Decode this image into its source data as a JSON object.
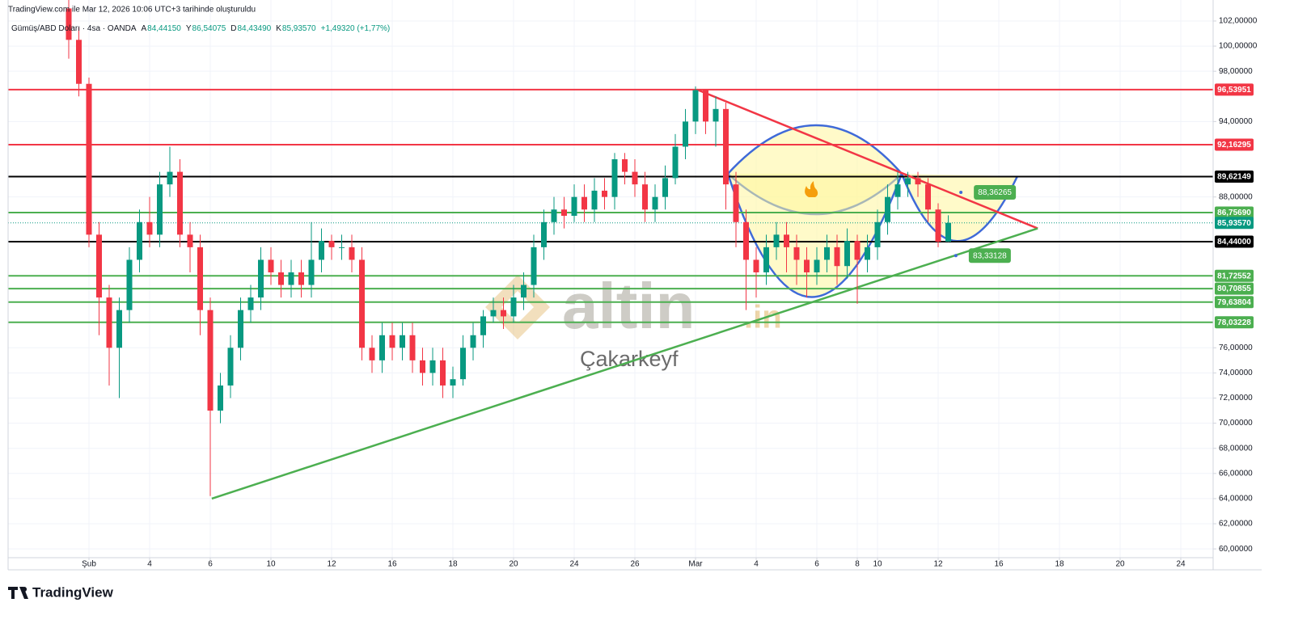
{
  "page": {
    "created_note": "TradingView.com ile Mar 12, 2026 10:06 UTC+3 tarihinde oluşturuldu",
    "brand": "TradingView"
  },
  "watermark": {
    "logo": "altin",
    "suffix": ".in",
    "author": "Çakarkeyf"
  },
  "chart_data": {
    "type": "candlestick",
    "title": "Gümüş/ABD Doları · 4sa · OANDA",
    "ohlc_text": [
      "A",
      "84,44150",
      "Y",
      "86,54075",
      "D",
      "84,43490",
      "K",
      "85,93570",
      "+1,49320 (+1,77%)"
    ],
    "up_color": "#089981",
    "down_color": "#f23645",
    "grid": true,
    "xlim": [
      0,
      238.4
    ],
    "ylim": [
      59.3,
      103.67
    ],
    "xticks": [
      {
        "value": 16,
        "label": "Şub"
      },
      {
        "value": 28,
        "label": "4"
      },
      {
        "value": 40,
        "label": "6"
      },
      {
        "value": 52,
        "label": "10"
      },
      {
        "value": 64,
        "label": "12"
      },
      {
        "value": 76,
        "label": "16"
      },
      {
        "value": 88,
        "label": "18"
      },
      {
        "value": 100,
        "label": "20"
      },
      {
        "value": 112,
        "label": "24"
      },
      {
        "value": 124,
        "label": "26"
      },
      {
        "value": 136,
        "label": "Mar"
      },
      {
        "value": 148,
        "label": "4"
      },
      {
        "value": 160,
        "label": "6"
      },
      {
        "value": 168,
        "label": "8"
      },
      {
        "value": 172,
        "label": "10"
      },
      {
        "value": 184,
        "label": "12"
      },
      {
        "value": 196,
        "label": "16"
      },
      {
        "value": 208,
        "label": "18"
      },
      {
        "value": 220,
        "label": "20"
      },
      {
        "value": 232,
        "label": "24"
      }
    ],
    "yticks": [
      {
        "value": 102,
        "label": "102,00000"
      },
      {
        "value": 100,
        "label": "100,00000"
      },
      {
        "value": 98,
        "label": "98,00000"
      },
      {
        "value": 94,
        "label": "94,00000"
      },
      {
        "value": 88,
        "label": "88,00000"
      },
      {
        "value": 76,
        "label": "76,00000"
      },
      {
        "value": 74,
        "label": "74,00000"
      },
      {
        "value": 72,
        "label": "72,00000"
      },
      {
        "value": 70,
        "label": "70,00000"
      },
      {
        "value": 68,
        "label": "68,00000"
      },
      {
        "value": 66,
        "label": "66,00000"
      },
      {
        "value": 64,
        "label": "64,00000"
      },
      {
        "value": 62,
        "label": "62,00000"
      },
      {
        "value": 60,
        "label": "60,00000"
      }
    ],
    "x": [
      12,
      14,
      16,
      18,
      20,
      22,
      24,
      26,
      28,
      30,
      32,
      34,
      36,
      38,
      40,
      42,
      44,
      46,
      48,
      50,
      52,
      54,
      56,
      58,
      60,
      62,
      64,
      66,
      68,
      70,
      72,
      74,
      76,
      78,
      80,
      82,
      84,
      86,
      88,
      90,
      92,
      94,
      96,
      98,
      100,
      102,
      104,
      106,
      108,
      110,
      112,
      114,
      116,
      118,
      120,
      122,
      124,
      126,
      128,
      130,
      132,
      134,
      136,
      138,
      140,
      142,
      144,
      146,
      148,
      150,
      152,
      154,
      156,
      158,
      160,
      162,
      164,
      166,
      168,
      170,
      172,
      174,
      176,
      178,
      180,
      182,
      184,
      186
    ],
    "open": [
      103,
      100.5,
      97,
      85,
      80,
      76,
      79,
      83,
      86,
      85,
      89,
      90,
      85,
      84,
      79,
      71,
      73,
      76,
      79,
      80,
      83,
      82,
      81,
      82,
      81,
      83,
      84.5,
      84,
      84,
      83,
      76,
      75,
      77,
      76,
      77,
      75,
      74,
      75,
      73,
      73.5,
      76,
      77,
      78.5,
      79,
      78.5,
      80,
      81,
      84,
      86,
      87,
      86.5,
      88,
      87,
      88.5,
      88,
      91,
      90,
      89,
      87,
      88,
      89.5,
      92,
      94,
      96.5,
      94,
      95,
      89,
      86,
      83,
      82,
      84,
      85,
      84,
      83,
      82,
      83,
      84,
      82.5,
      84.5,
      83,
      84,
      86,
      88,
      89,
      89.5,
      89,
      87,
      84.44
    ],
    "high": [
      104,
      101.5,
      97.5,
      86,
      81,
      80,
      84,
      87,
      88,
      90,
      92,
      91,
      86,
      85,
      80,
      74,
      77,
      80,
      81,
      84,
      84,
      83,
      83,
      83,
      86,
      85.5,
      85,
      85,
      85,
      84,
      77,
      78,
      78,
      78,
      78,
      76,
      76,
      76,
      74.5,
      77,
      78,
      79,
      80,
      80,
      81,
      82,
      85,
      87,
      88,
      88,
      89,
      89,
      89.5,
      89.5,
      91.5,
      91.5,
      91,
      90,
      89,
      90.5,
      93,
      95,
      96.8,
      96.5,
      96,
      95.5,
      90,
      87,
      84,
      85,
      86,
      86,
      85,
      84,
      84,
      85,
      85,
      85.5,
      85,
      85,
      87,
      89,
      90,
      90,
      90,
      89.5,
      87.5,
      86.54
    ],
    "low": [
      99,
      96,
      84,
      77,
      73,
      72,
      78,
      82,
      84,
      84,
      88,
      84,
      82,
      77,
      64.2,
      70,
      72,
      75,
      78,
      79,
      81,
      80,
      80,
      80,
      80,
      82,
      83,
      83,
      82,
      75,
      74,
      74,
      75,
      75,
      74,
      73,
      73,
      72,
      72,
      73,
      75,
      76,
      78,
      77.5,
      78,
      79,
      80,
      83,
      85,
      85.5,
      86,
      86,
      86,
      87,
      87,
      89,
      88,
      86,
      86,
      87,
      89,
      91,
      93,
      93,
      92,
      87,
      84,
      79,
      80,
      81,
      83,
      82,
      81,
      80,
      81,
      82,
      81,
      81.5,
      79.5,
      82,
      83,
      85,
      87,
      88,
      88,
      86,
      84,
      84.43
    ],
    "close": [
      100.5,
      97,
      85,
      80,
      76,
      79,
      83,
      86,
      85,
      89,
      90,
      85,
      84,
      79,
      71,
      73,
      76,
      79,
      80,
      83,
      82,
      81,
      82,
      81,
      83,
      84.5,
      84,
      84,
      83,
      76,
      75,
      77,
      76,
      77,
      75,
      74,
      75,
      73,
      73.5,
      76,
      77,
      78.5,
      79,
      78.5,
      80,
      81,
      84,
      86,
      87,
      86.5,
      88,
      87,
      88.5,
      88,
      91,
      90,
      89,
      87,
      88,
      89.5,
      92,
      94,
      96.5,
      94,
      95,
      89,
      86,
      83,
      82,
      84,
      85,
      84,
      83,
      82,
      83,
      84,
      82.5,
      84.5,
      83,
      84,
      86,
      88,
      89,
      89.5,
      89,
      87,
      84.44,
      85.9357
    ],
    "levels": [
      {
        "value": 96.53951,
        "label": "96,53951",
        "color": "#f23645"
      },
      {
        "value": 92.16295,
        "label": "92,16295",
        "color": "#f23645"
      },
      {
        "value": 89.62149,
        "label": "89,62149",
        "color": "#000000"
      },
      {
        "value": 86.7569,
        "label": "86,75690",
        "color": "#4caf50"
      },
      {
        "value": 85.9357,
        "label": "85,93570",
        "color": "#089981",
        "style": "dotted"
      },
      {
        "value": 84.44,
        "label": "84,44000",
        "color": "#000000"
      },
      {
        "value": 81.72552,
        "label": "81,72552",
        "color": "#4caf50"
      },
      {
        "value": 80.70855,
        "label": "80,70855",
        "color": "#4caf50"
      },
      {
        "value": 79.63804,
        "label": "79,63804",
        "color": "#4caf50"
      },
      {
        "value": 78.03228,
        "label": "78,03228",
        "color": "#4caf50"
      }
    ],
    "trendlines": [
      {
        "color": "#f23645",
        "x": [
          136.3,
          203.7
        ],
        "y": [
          96.54,
          85.5
        ]
      },
      {
        "color": "#4caf50",
        "x": [
          40.3,
          203.7
        ],
        "y": [
          64,
          85.5
        ]
      }
    ],
    "callouts": [
      {
        "x": 188.5,
        "value": 88.36265,
        "label": "88,36265"
      },
      {
        "x": 187.5,
        "value": 83.33128,
        "label": "83,33128"
      }
    ]
  }
}
